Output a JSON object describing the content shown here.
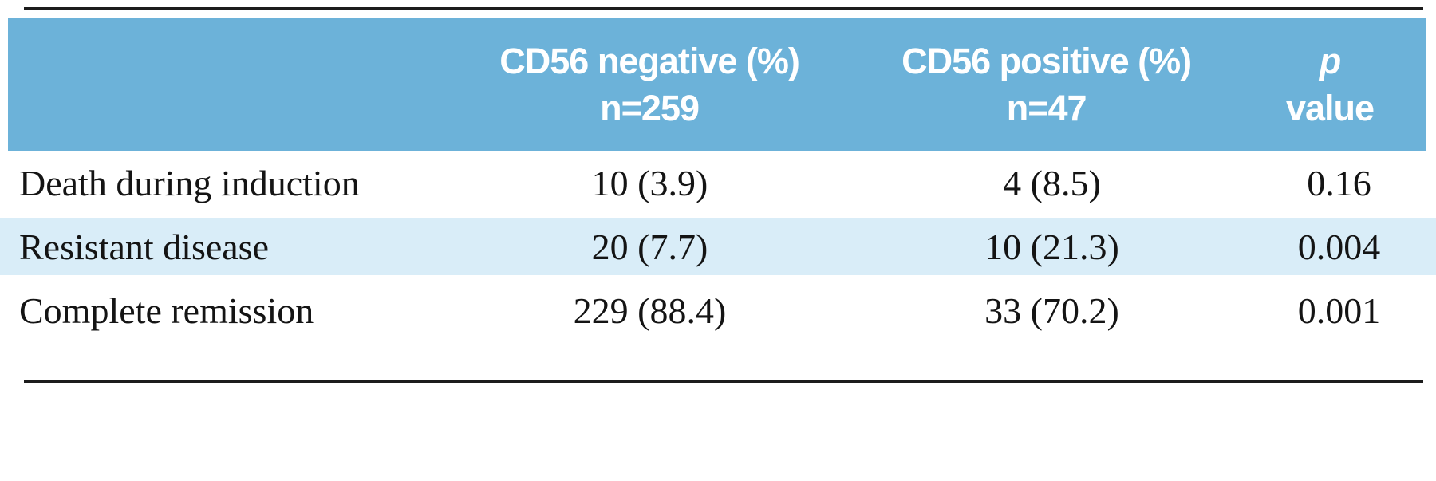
{
  "figure": {
    "columns": [
      {
        "line1": "",
        "line2": ""
      },
      {
        "line1": "CD56 negative (%)",
        "line2": "n=259"
      },
      {
        "line1": "CD56 positive (%)",
        "line2": "n=47"
      },
      {
        "line1": "p",
        "line2": "value"
      }
    ],
    "rows": [
      {
        "label": "Death during induction",
        "cd56_negative": "10 (3.9)",
        "cd56_positive": "4 (8.5)",
        "p": "0.16",
        "highlighted": false
      },
      {
        "label": "Resistant disease",
        "cd56_negative": "20 (7.7)",
        "cd56_positive": "10 (21.3)",
        "p": "0.004",
        "highlighted": true
      },
      {
        "label": "Complete remission",
        "cd56_negative": "229 (88.4)",
        "cd56_positive": "33 (70.2)",
        "p": "0.001",
        "highlighted": false
      }
    ]
  },
  "colors": {
    "header_bg": "#6cb2d9",
    "row_highlight_bg": "#d9edf8",
    "header_text": "#ffffff",
    "body_text": "#141414",
    "rule_color": "#1c1c1c",
    "page_bg": "#ffffff"
  },
  "chart_data": {
    "type": "table",
    "columns": [
      "",
      "CD56 negative (%) n=259",
      "CD56 positive (%) n=47",
      "p value"
    ],
    "rows": [
      [
        "Death during induction",
        "10 (3.9)",
        "4 (8.5)",
        "0.16"
      ],
      [
        "Resistant disease",
        "20 (7.7)",
        "10 (21.3)",
        "0.004"
      ],
      [
        "Complete remission",
        "229 (88.4)",
        "33 (70.2)",
        "0.001"
      ]
    ]
  }
}
